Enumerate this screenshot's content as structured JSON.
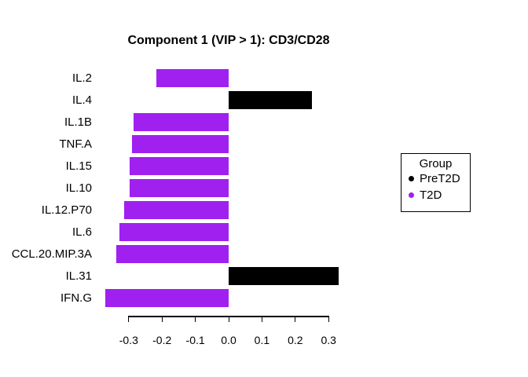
{
  "chart_data": {
    "type": "bar",
    "orientation": "horizontal",
    "title": "Component 1 (VIP > 1): CD3/CD28",
    "categories": [
      "IL.2",
      "IL.4",
      "IL.1B",
      "TNF.A",
      "IL.15",
      "IL.10",
      "IL.12.P70",
      "IL.6",
      "CCL.20.MIP.3A",
      "IL.31",
      "IFN.G"
    ],
    "values": [
      -0.216,
      0.249,
      -0.285,
      -0.291,
      -0.296,
      -0.296,
      -0.314,
      -0.329,
      -0.338,
      0.33,
      -0.37
    ],
    "groups": [
      "T2D",
      "PreT2D",
      "T2D",
      "T2D",
      "T2D",
      "T2D",
      "T2D",
      "T2D",
      "T2D",
      "PreT2D",
      "T2D"
    ],
    "group_colors": {
      "PreT2D": "#000000",
      "T2D": "#A020F0"
    },
    "x_ticks": [
      -0.3,
      -0.2,
      -0.1,
      0,
      0.1,
      0.2,
      0.3
    ],
    "x_tick_labels": [
      "-0.3",
      "-0.2",
      "-0.1",
      "0.0",
      "0.1",
      "0.2",
      "0.3"
    ],
    "xlim": [
      -0.3,
      0.3
    ],
    "xlabel": "",
    "ylabel": "",
    "grid": false,
    "background": "#ffffff",
    "legend": {
      "title": "Group",
      "position": "right",
      "items": [
        {
          "label": "PreT2D",
          "color": "#000000"
        },
        {
          "label": "T2D",
          "color": "#A020F0"
        }
      ]
    }
  }
}
